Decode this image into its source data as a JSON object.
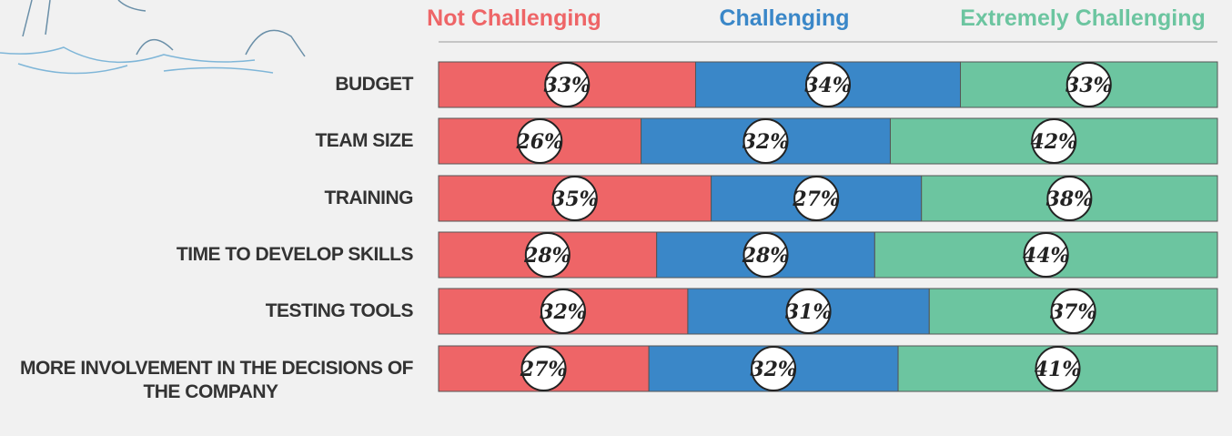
{
  "chart_data": {
    "type": "stacked-bar-horizontal",
    "categories": [
      "BUDGET",
      "TEAM SIZE",
      "TRAINING",
      "TIME TO DEVELOP SKILLS",
      "TESTING TOOLS",
      "MORE INVOLVEMENT IN THE DECISIONS OF THE COMPANY"
    ],
    "series": [
      {
        "name": "Not Challenging",
        "color": "#ee6567",
        "values": [
          33,
          26,
          35,
          28,
          32,
          27
        ],
        "value_labels": [
          "33%",
          "26%",
          "35%",
          "28%",
          "32%",
          "27%"
        ]
      },
      {
        "name": "Challenging",
        "color": "#3a87c8",
        "values": [
          34,
          32,
          27,
          28,
          31,
          32
        ],
        "value_labels": [
          "34%",
          "32%",
          "27%",
          "28%",
          "31%",
          "32%"
        ]
      },
      {
        "name": "Extremely  Challenging",
        "color": "#6cc5a0",
        "values": [
          33,
          42,
          38,
          44,
          37,
          41
        ],
        "value_labels": [
          "33%",
          "42%",
          "38%",
          "44%",
          "37%",
          "41%"
        ]
      }
    ]
  }
}
